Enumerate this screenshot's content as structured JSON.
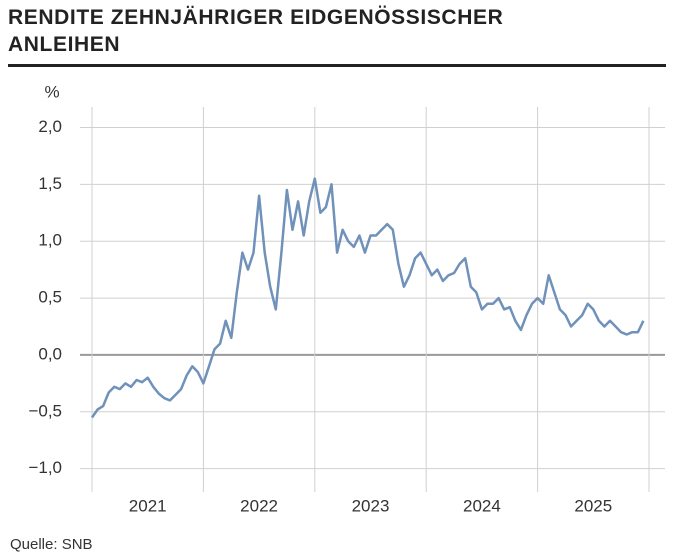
{
  "chart_data": {
    "type": "line",
    "title": "RENDITE ZEHNJÄHRIGER EIDGENÖSSISCHER ANLEIHEN",
    "y_label": "%",
    "source": "Quelle: SNB",
    "color": "#6f91ba",
    "grid": true,
    "xlim": [
      2021,
      2026
    ],
    "xgrid": [
      2021,
      2022,
      2023,
      2024,
      2025,
      2026
    ],
    "xticks": [
      {
        "value": 2021.5,
        "label": "2021"
      },
      {
        "value": 2022.5,
        "label": "2022"
      },
      {
        "value": 2023.5,
        "label": "2023"
      },
      {
        "value": 2024.5,
        "label": "2024"
      },
      {
        "value": 2025.5,
        "label": "2025"
      }
    ],
    "ylim": [
      -1.17,
      2.18
    ],
    "yticks": [
      {
        "value": -1,
        "label": "−1,0"
      },
      {
        "value": -0.5,
        "label": "−0,5"
      },
      {
        "value": 0,
        "label": "0,0"
      },
      {
        "value": 0.5,
        "label": "0,5"
      },
      {
        "value": 1,
        "label": "1,0"
      },
      {
        "value": 1.5,
        "label": "1,5"
      },
      {
        "value": 2,
        "label": "2,0"
      }
    ],
    "x": [
      2021.0,
      2021.05,
      2021.1,
      2021.15,
      2021.2,
      2021.25,
      2021.3,
      2021.35,
      2021.4,
      2021.45,
      2021.5,
      2021.55,
      2021.6,
      2021.65,
      2021.7,
      2021.75,
      2021.8,
      2021.85,
      2021.9,
      2021.95,
      2022.0,
      2022.05,
      2022.1,
      2022.15,
      2022.2,
      2022.25,
      2022.3,
      2022.35,
      2022.4,
      2022.45,
      2022.5,
      2022.55,
      2022.6,
      2022.65,
      2022.7,
      2022.75,
      2022.8,
      2022.85,
      2022.9,
      2022.95,
      2023.0,
      2023.05,
      2023.1,
      2023.15,
      2023.2,
      2023.25,
      2023.3,
      2023.35,
      2023.4,
      2023.45,
      2023.5,
      2023.55,
      2023.6,
      2023.65,
      2023.7,
      2023.75,
      2023.8,
      2023.85,
      2023.9,
      2023.95,
      2024.0,
      2024.05,
      2024.1,
      2024.15,
      2024.2,
      2024.25,
      2024.3,
      2024.35,
      2024.4,
      2024.45,
      2024.5,
      2024.55,
      2024.6,
      2024.65,
      2024.7,
      2024.75,
      2024.8,
      2024.85,
      2024.9,
      2024.95,
      2025.0,
      2025.05,
      2025.1,
      2025.15,
      2025.2,
      2025.25,
      2025.3,
      2025.35,
      2025.4,
      2025.45,
      2025.5,
      2025.55,
      2025.6,
      2025.65,
      2025.7,
      2025.75,
      2025.8,
      2025.85,
      2025.9,
      2025.95
    ],
    "values": [
      -0.55,
      -0.48,
      -0.45,
      -0.33,
      -0.28,
      -0.3,
      -0.25,
      -0.28,
      -0.22,
      -0.24,
      -0.2,
      -0.28,
      -0.34,
      -0.38,
      -0.4,
      -0.35,
      -0.3,
      -0.18,
      -0.1,
      -0.15,
      -0.25,
      -0.1,
      0.05,
      0.1,
      0.3,
      0.15,
      0.55,
      0.9,
      0.75,
      0.9,
      1.4,
      0.9,
      0.6,
      0.4,
      0.9,
      1.45,
      1.1,
      1.35,
      1.05,
      1.35,
      1.55,
      1.25,
      1.3,
      1.5,
      0.9,
      1.1,
      1.0,
      0.95,
      1.05,
      0.9,
      1.05,
      1.05,
      1.1,
      1.15,
      1.1,
      0.8,
      0.6,
      0.7,
      0.85,
      0.9,
      0.8,
      0.7,
      0.75,
      0.65,
      0.7,
      0.72,
      0.8,
      0.85,
      0.6,
      0.55,
      0.4,
      0.45,
      0.45,
      0.5,
      0.4,
      0.42,
      0.3,
      0.22,
      0.35,
      0.45,
      0.5,
      0.45,
      0.7,
      0.55,
      0.4,
      0.35,
      0.25,
      0.3,
      0.35,
      0.45,
      0.4,
      0.3,
      0.25,
      0.3,
      0.25,
      0.2,
      0.18,
      0.2,
      0.2,
      0.3
    ]
  }
}
